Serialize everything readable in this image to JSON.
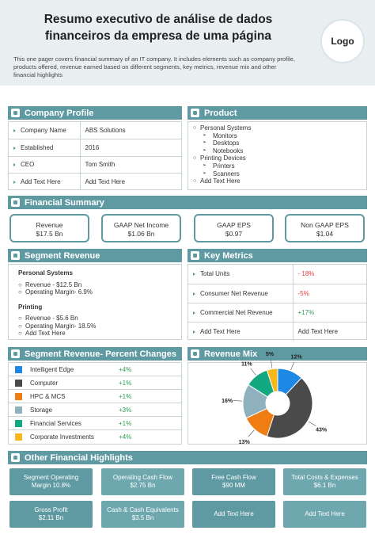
{
  "header": {
    "title": "Resumo executivo de análise de dados financeiros da empresa de uma página",
    "intro": "This one pager covers financial summary of an IT company. It includes elements such as company profile, products offered, revenue earned based on different segments, key metrics, revenue mix and other financial highlights",
    "logo": "Logo"
  },
  "company_profile": {
    "title": "Company Profile",
    "rows": [
      {
        "k": "Company Name",
        "v": "ABS Solutions"
      },
      {
        "k": "Established",
        "v": "2016"
      },
      {
        "k": "CEO",
        "v": "Tom Smith"
      },
      {
        "k": "Add Text Here",
        "v": "Add Text Here"
      }
    ]
  },
  "product": {
    "title": "Product",
    "group1": "Personal Systems",
    "g1_items": [
      "Monitors",
      "Desktops",
      "Notebooks"
    ],
    "group2": "Printing Devices",
    "g2_items": [
      "Printers",
      "Scanners"
    ],
    "extra": "Add Text Here"
  },
  "financial_summary": {
    "title": "Financial Summary",
    "cards": [
      {
        "label": "Revenue",
        "value": "$17.5 Bn"
      },
      {
        "label": "GAAP Net Income",
        "value": "$1.06 Bn"
      },
      {
        "label": "GAAP EPS",
        "value": "$0.97"
      },
      {
        "label": "Non GAAP EPS",
        "value": "$1.04"
      }
    ]
  },
  "segment_revenue": {
    "title": "Segment Revenue",
    "s1": {
      "name": "Personal Systems",
      "l1": "Revenue - $12.5 Bn",
      "l2": "Operating Margin- 6.9%"
    },
    "s2": {
      "name": "Printing",
      "l1": "Revenue - $5.6 Bn",
      "l2": "Operating Margin- 18.5%",
      "l3": "Add Text Here"
    }
  },
  "key_metrics": {
    "title": "Key Metrics",
    "rows": [
      {
        "k": "Total Units",
        "v": "- 18%"
      },
      {
        "k": "Consumer Net Revenue",
        "v": "-5%"
      },
      {
        "k": "Commercial Net Revenue",
        "v": "+17%"
      },
      {
        "k": "Add Text Here",
        "v": "Add Text Here"
      }
    ]
  },
  "percent_changes": {
    "title": "Segment Revenue- Percent Changes",
    "rows": [
      {
        "label": "Intelligent Edge",
        "value": "+4%",
        "color": "#1e88e5"
      },
      {
        "label": "Computer",
        "value": "+1%",
        "color": "#4a4a4a"
      },
      {
        "label": "HPC & MCS",
        "value": "+1%",
        "color": "#ef7d11"
      },
      {
        "label": "Storage",
        "value": "+3%",
        "color": "#8fb1bd"
      },
      {
        "label": "Financial Services",
        "value": "+1%",
        "color": "#13a882"
      },
      {
        "label": "Corporate Investments",
        "value": "+4%",
        "color": "#f6b81a"
      }
    ]
  },
  "revenue_mix": {
    "title": "Revenue Mix"
  },
  "chart_data": {
    "type": "pie",
    "categories": [
      "Intelligent Edge",
      "Computer",
      "HPC & MCS",
      "Storage",
      "Financial Services",
      "Corporate Investments"
    ],
    "values": [
      12,
      43,
      13,
      16,
      11,
      5
    ],
    "labels": [
      "12%",
      "43%",
      "13%",
      "16%",
      "11%",
      "5%"
    ],
    "colors": [
      "#1e88e5",
      "#4a4a4a",
      "#ef7d11",
      "#8fb1bd",
      "#13a882",
      "#f6b81a"
    ]
  },
  "highlights": {
    "title": "Other Financial Highlights",
    "cards": [
      {
        "l1": "Segment Operating",
        "l2": "Margin 10.8%"
      },
      {
        "l1": "Operating Cash Flow",
        "l2": "$2.75 Bn"
      },
      {
        "l1": "Free Cash Flow",
        "l2": "$90 MM"
      },
      {
        "l1": "Total Costs & Expenses",
        "l2": "$6.1 Bn"
      },
      {
        "l1": "Gross Profit",
        "l2": "$2.11 Bn"
      },
      {
        "l1": "Cash & Cash Equivalents",
        "l2": "$3.5 Bn"
      },
      {
        "l1": "Add Text Here",
        "l2": ""
      },
      {
        "l1": "Add Text Here",
        "l2": ""
      }
    ]
  }
}
